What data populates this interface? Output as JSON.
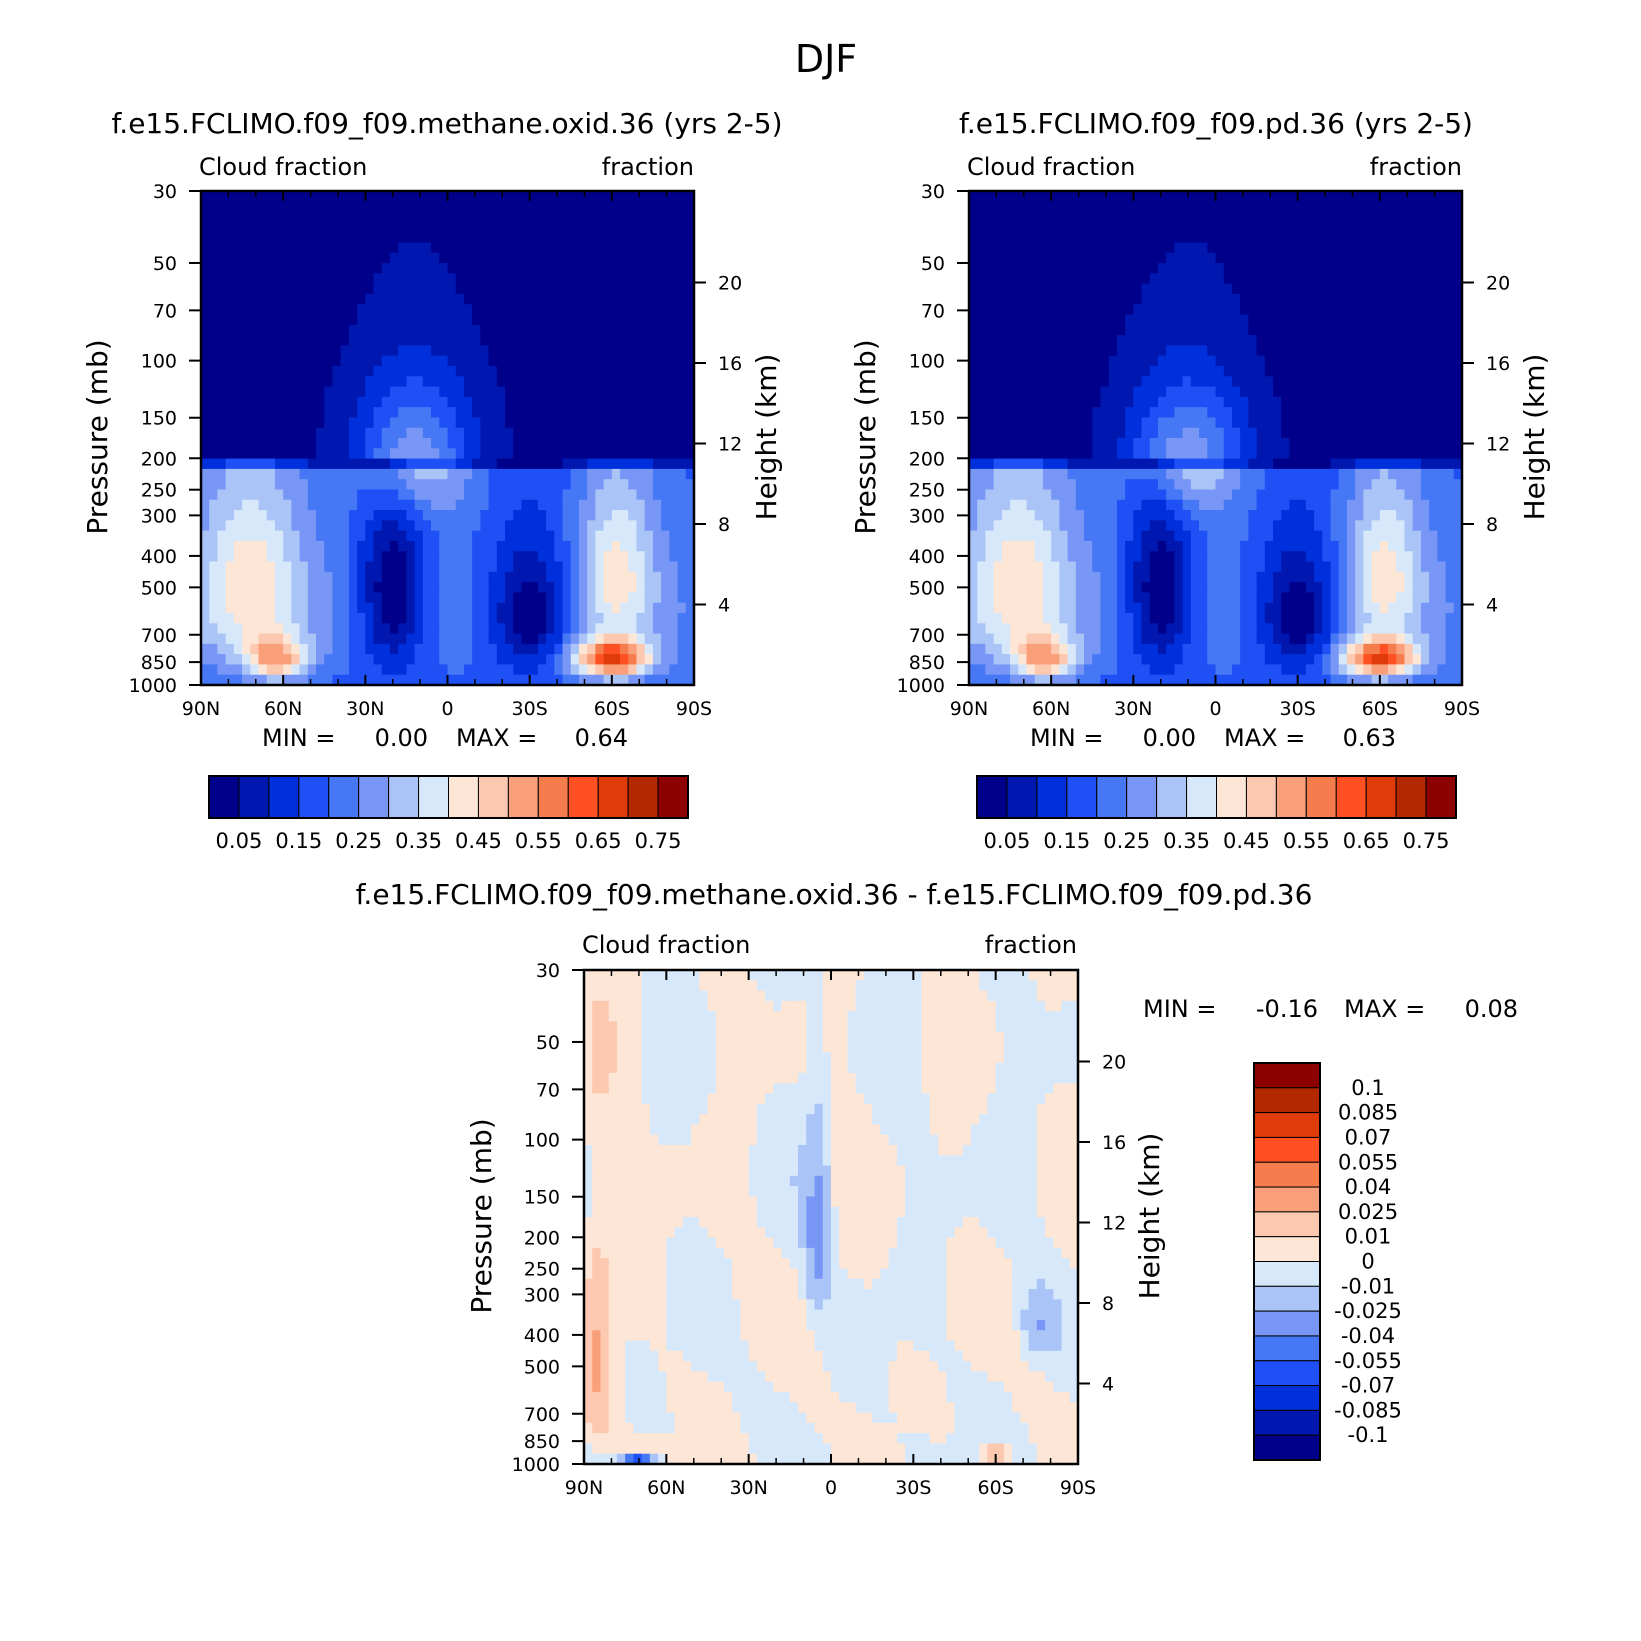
{
  "page_title": "DJF",
  "colors": {
    "levels": [
      "#00008b",
      "#0018b0",
      "#0030dc",
      "#1e50f5",
      "#4678f5",
      "#7896f5",
      "#aac4f8",
      "#d6e8fa",
      "#fde6d6",
      "#fcc8b0",
      "#f9a07a",
      "#f57c4c",
      "#ff5024",
      "#e03c0a",
      "#b42800",
      "#8c0000"
    ]
  },
  "chart_data": [
    {
      "type": "heatmap",
      "title": "f.e15.FCLIMO.f09_f09.methane.oxid.36 (yrs 2-5)",
      "subtitle_left": "Cloud fraction",
      "subtitle_right": "fraction",
      "ylabel": "Pressure (mb)",
      "ylabel_right": "Height (km)",
      "x_ticks": [
        "90N",
        "60N",
        "30N",
        "0",
        "30S",
        "60S",
        "90S"
      ],
      "xlim": [
        90,
        -90
      ],
      "y_ticks": [
        "30",
        "50",
        "70",
        "100",
        "150",
        "200",
        "250",
        "300",
        "400",
        "500",
        "700",
        "850",
        "1000"
      ],
      "y_ticks_right": [
        "20",
        "16",
        "12",
        "8",
        "4"
      ],
      "ylim": [
        1000,
        30
      ],
      "min_label": "MIN =",
      "min_value": "0.00",
      "max_label": "MAX =",
      "max_value": "0.64",
      "colorbar_labels": [
        "0.05",
        "0.15",
        "0.25",
        "0.35",
        "0.45",
        "0.55",
        "0.65",
        "0.75"
      ],
      "features": [
        {
          "lat": 12,
          "p": 200,
          "value": 0.32,
          "lat_width": 14,
          "p_width": 70
        },
        {
          "lat": -60,
          "p": 830,
          "value": 0.58,
          "lat_width": 10,
          "p_width": 80
        },
        {
          "lat": 62,
          "p": 830,
          "value": 0.42,
          "lat_width": 8,
          "p_width": 90
        },
        {
          "lat": 72,
          "p": 480,
          "value": 0.36,
          "lat_width": 14,
          "p_width": 250
        },
        {
          "lat": -62,
          "p": 450,
          "value": 0.35,
          "lat_width": 10,
          "p_width": 200
        },
        {
          "lat": 20,
          "p": 530,
          "value": 0.02,
          "lat_width": 8,
          "p_width": 220
        },
        {
          "lat": -30,
          "p": 600,
          "value": 0.02,
          "lat_width": 10,
          "p_width": 180
        }
      ]
    },
    {
      "type": "heatmap",
      "title": "f.e15.FCLIMO.f09_f09.pd.36 (yrs 2-5)",
      "subtitle_left": "Cloud fraction",
      "subtitle_right": "fraction",
      "ylabel": "Pressure (mb)",
      "ylabel_right": "Height (km)",
      "x_ticks": [
        "90N",
        "60N",
        "30N",
        "0",
        "30S",
        "60S",
        "90S"
      ],
      "xlim": [
        90,
        -90
      ],
      "y_ticks": [
        "30",
        "50",
        "70",
        "100",
        "150",
        "200",
        "250",
        "300",
        "400",
        "500",
        "700",
        "850",
        "1000"
      ],
      "y_ticks_right": [
        "20",
        "16",
        "12",
        "8",
        "4"
      ],
      "ylim": [
        1000,
        30
      ],
      "min_label": "MIN =",
      "min_value": "0.00",
      "max_label": "MAX =",
      "max_value": "0.63",
      "colorbar_labels": [
        "0.05",
        "0.15",
        "0.25",
        "0.35",
        "0.45",
        "0.55",
        "0.65",
        "0.75"
      ],
      "features": [
        {
          "lat": 10,
          "p": 200,
          "value": 0.32,
          "lat_width": 14,
          "p_width": 70
        },
        {
          "lat": -60,
          "p": 830,
          "value": 0.57,
          "lat_width": 10,
          "p_width": 80
        },
        {
          "lat": 62,
          "p": 830,
          "value": 0.42,
          "lat_width": 8,
          "p_width": 90
        },
        {
          "lat": 72,
          "p": 480,
          "value": 0.36,
          "lat_width": 14,
          "p_width": 250
        },
        {
          "lat": -62,
          "p": 450,
          "value": 0.35,
          "lat_width": 10,
          "p_width": 200
        },
        {
          "lat": 20,
          "p": 530,
          "value": 0.02,
          "lat_width": 8,
          "p_width": 220
        },
        {
          "lat": -30,
          "p": 600,
          "value": 0.02,
          "lat_width": 10,
          "p_width": 180
        }
      ]
    },
    {
      "type": "heatmap",
      "title": "f.e15.FCLIMO.f09_f09.methane.oxid.36 - f.e15.FCLIMO.f09_f09.pd.36",
      "subtitle_left": "Cloud fraction",
      "subtitle_right": "fraction",
      "ylabel": "Pressure (mb)",
      "ylabel_right": "Height (km)",
      "x_ticks": [
        "90N",
        "60N",
        "30N",
        "0",
        "30S",
        "60S",
        "90S"
      ],
      "xlim": [
        90,
        -90
      ],
      "y_ticks": [
        "30",
        "50",
        "70",
        "100",
        "150",
        "200",
        "250",
        "300",
        "400",
        "500",
        "700",
        "850",
        "1000"
      ],
      "y_ticks_right": [
        "20",
        "16",
        "12",
        "8",
        "4"
      ],
      "ylim": [
        1000,
        30
      ],
      "min_label": "MIN =",
      "min_value": "-0.16",
      "max_label": "MAX =",
      "max_value": "0.08",
      "colorbar_labels": [
        "0.1",
        "0.085",
        "0.07",
        "0.055",
        "0.04",
        "0.025",
        "0.01",
        "0",
        "-0.01",
        "-0.025",
        "-0.04",
        "-0.055",
        "-0.07",
        "-0.085",
        "-0.1"
      ],
      "features": [
        {
          "lat": 85,
          "p": 500,
          "value": 0.03,
          "lat_width": 4,
          "p_width": 250
        },
        {
          "lat": 5,
          "p": 200,
          "value": -0.05,
          "lat_width": 3,
          "p_width": 90
        },
        {
          "lat": -60,
          "p": 920,
          "value": 0.04,
          "lat_width": 3,
          "p_width": 40
        },
        {
          "lat": 70,
          "p": 970,
          "value": -0.1,
          "lat_width": 4,
          "p_width": 20
        }
      ]
    }
  ]
}
